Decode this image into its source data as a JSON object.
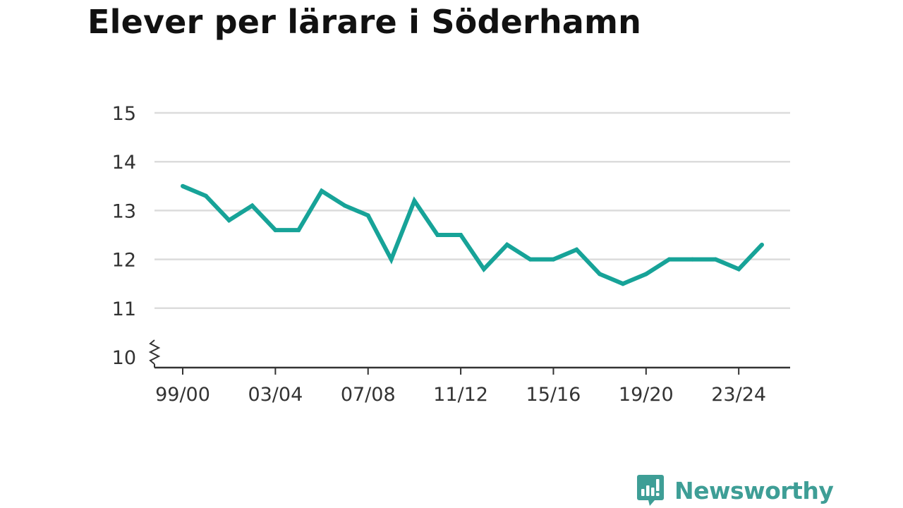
{
  "chart_data": {
    "type": "line",
    "title": "Elever per lärare i Söderhamn",
    "xlabel": "",
    "ylabel": "",
    "ylim": [
      10,
      15
    ],
    "y_ticks": [
      "10",
      "11",
      "12",
      "13",
      "14",
      "15"
    ],
    "y_axis_break": true,
    "grid": true,
    "categories": [
      "99/00",
      "00/01",
      "01/02",
      "02/03",
      "03/04",
      "04/05",
      "05/06",
      "06/07",
      "07/08",
      "08/09",
      "09/10",
      "10/11",
      "11/12",
      "12/13",
      "13/14",
      "14/15",
      "15/16",
      "16/17",
      "17/18",
      "18/19",
      "19/20",
      "20/21",
      "21/22",
      "22/23",
      "23/24",
      "24/25"
    ],
    "x_tick_labels": [
      "99/00",
      "03/04",
      "07/08",
      "11/12",
      "15/16",
      "19/20",
      "23/24"
    ],
    "series": [
      {
        "values": [
          13.5,
          13.3,
          12.8,
          13.1,
          12.6,
          12.6,
          13.4,
          13.1,
          12.9,
          12.0,
          13.2,
          12.5,
          12.5,
          11.8,
          12.3,
          12.0,
          12.0,
          12.2,
          11.7,
          11.5,
          11.7,
          12.0,
          12.0,
          12.0,
          11.8,
          12.3
        ]
      }
    ],
    "colors": {
      "line": "#17a398",
      "grid": "#dcdcdc",
      "axis": "#333333",
      "text": "#333333"
    }
  },
  "brand": {
    "name": "Newsworthy",
    "color": "#3e9e96"
  }
}
